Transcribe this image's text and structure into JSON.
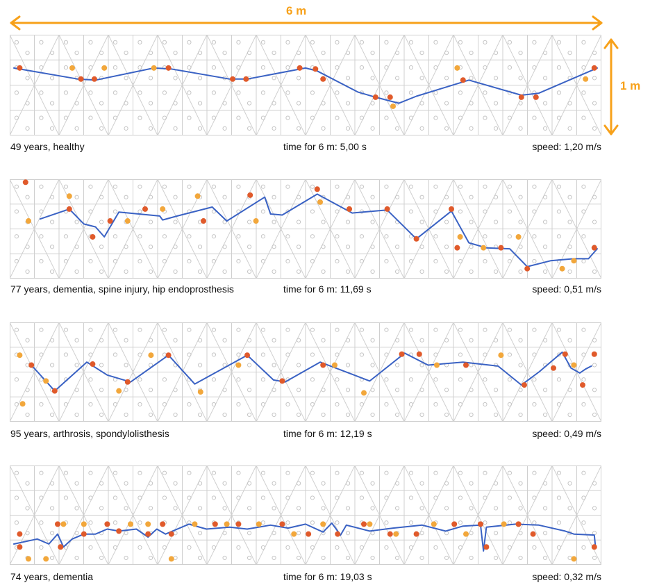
{
  "dimensions": {
    "width_label": "6 m",
    "height_label": "1 m"
  },
  "colors": {
    "dimension": "#f7a11a",
    "path": "#3a62c4",
    "right_foot": "#e05a2b",
    "left_foot": "#f2a73b",
    "grid": "#cfcfcf",
    "sensor": "#c6c6c6"
  },
  "panels": [
    {
      "description": "49 years, healthy",
      "time": "time for 6 m: 5,00 s",
      "speed": "speed: 1,20 m/s",
      "path": [
        [
          0.0,
          0.33
        ],
        [
          0.11,
          0.44
        ],
        [
          0.14,
          0.45
        ],
        [
          0.24,
          0.33
        ],
        [
          0.27,
          0.34
        ],
        [
          0.37,
          0.44
        ],
        [
          0.4,
          0.44
        ],
        [
          0.5,
          0.33
        ],
        [
          0.52,
          0.36
        ],
        [
          0.59,
          0.57
        ],
        [
          0.62,
          0.62
        ],
        [
          0.66,
          0.68
        ],
        [
          0.69,
          0.61
        ],
        [
          0.78,
          0.45
        ],
        [
          0.87,
          0.6
        ],
        [
          0.9,
          0.58
        ],
        [
          1.0,
          0.33
        ]
      ],
      "right_steps": [
        [
          0.01,
          0.33
        ],
        [
          0.115,
          0.44
        ],
        [
          0.138,
          0.44
        ],
        [
          0.265,
          0.33
        ],
        [
          0.375,
          0.44
        ],
        [
          0.398,
          0.44
        ],
        [
          0.49,
          0.33
        ],
        [
          0.517,
          0.34
        ],
        [
          0.53,
          0.44
        ],
        [
          0.62,
          0.62
        ],
        [
          0.645,
          0.62
        ],
        [
          0.77,
          0.45
        ],
        [
          0.87,
          0.62
        ],
        [
          0.895,
          0.62
        ],
        [
          0.995,
          0.33
        ]
      ],
      "left_steps": [
        [
          0.1,
          0.33
        ],
        [
          0.155,
          0.33
        ],
        [
          0.24,
          0.33
        ],
        [
          0.65,
          0.71
        ],
        [
          0.76,
          0.33
        ],
        [
          0.98,
          0.44
        ]
      ]
    },
    {
      "description": "77 years, dementia, spine injury, hip endoprosthesis",
      "time": "time for 6 m: 11,69 s",
      "speed": "speed: 0,51 m/s",
      "path": [
        [
          0.045,
          0.4
        ],
        [
          0.095,
          0.3
        ],
        [
          0.12,
          0.45
        ],
        [
          0.14,
          0.48
        ],
        [
          0.155,
          0.58
        ],
        [
          0.18,
          0.33
        ],
        [
          0.25,
          0.37
        ],
        [
          0.255,
          0.41
        ],
        [
          0.28,
          0.37
        ],
        [
          0.34,
          0.28
        ],
        [
          0.365,
          0.42
        ],
        [
          0.43,
          0.18
        ],
        [
          0.44,
          0.35
        ],
        [
          0.46,
          0.36
        ],
        [
          0.52,
          0.15
        ],
        [
          0.58,
          0.34
        ],
        [
          0.64,
          0.31
        ],
        [
          0.69,
          0.6
        ],
        [
          0.75,
          0.32
        ],
        [
          0.78,
          0.64
        ],
        [
          0.81,
          0.69
        ],
        [
          0.85,
          0.7
        ],
        [
          0.88,
          0.88
        ],
        [
          0.92,
          0.82
        ],
        [
          0.96,
          0.8
        ],
        [
          0.985,
          0.8
        ],
        [
          1.0,
          0.7
        ]
      ],
      "right_steps": [
        [
          0.02,
          0.03
        ],
        [
          0.095,
          0.3
        ],
        [
          0.135,
          0.58
        ],
        [
          0.165,
          0.42
        ],
        [
          0.225,
          0.3
        ],
        [
          0.325,
          0.42
        ],
        [
          0.405,
          0.16
        ],
        [
          0.52,
          0.1
        ],
        [
          0.575,
          0.3
        ],
        [
          0.64,
          0.3
        ],
        [
          0.69,
          0.6
        ],
        [
          0.75,
          0.3
        ],
        [
          0.76,
          0.69
        ],
        [
          0.835,
          0.69
        ],
        [
          0.88,
          0.9
        ],
        [
          0.995,
          0.69
        ]
      ],
      "left_steps": [
        [
          0.025,
          0.42
        ],
        [
          0.095,
          0.17
        ],
        [
          0.195,
          0.42
        ],
        [
          0.255,
          0.3
        ],
        [
          0.315,
          0.17
        ],
        [
          0.415,
          0.42
        ],
        [
          0.525,
          0.23
        ],
        [
          0.575,
          0.3
        ],
        [
          0.765,
          0.58
        ],
        [
          0.805,
          0.69
        ],
        [
          0.865,
          0.58
        ],
        [
          0.94,
          0.9
        ],
        [
          0.96,
          0.82
        ]
      ]
    },
    {
      "description": "95 years, arthrosis, spondylolisthesis",
      "time": "time for 6 m: 12,19 s",
      "speed": "speed: 0,49 m/s",
      "path": [
        [
          0.03,
          0.43
        ],
        [
          0.07,
          0.69
        ],
        [
          0.125,
          0.4
        ],
        [
          0.16,
          0.53
        ],
        [
          0.2,
          0.6
        ],
        [
          0.265,
          0.33
        ],
        [
          0.31,
          0.62
        ],
        [
          0.4,
          0.33
        ],
        [
          0.445,
          0.58
        ],
        [
          0.465,
          0.6
        ],
        [
          0.525,
          0.4
        ],
        [
          0.61,
          0.59
        ],
        [
          0.67,
          0.31
        ],
        [
          0.71,
          0.43
        ],
        [
          0.77,
          0.4
        ],
        [
          0.83,
          0.44
        ],
        [
          0.87,
          0.63
        ],
        [
          0.9,
          0.5
        ],
        [
          0.94,
          0.3
        ],
        [
          0.955,
          0.46
        ],
        [
          0.97,
          0.51
        ],
        [
          0.98,
          0.47
        ],
        [
          0.99,
          0.44
        ]
      ],
      "right_steps": [
        [
          0.03,
          0.43
        ],
        [
          0.07,
          0.69
        ],
        [
          0.135,
          0.42
        ],
        [
          0.195,
          0.6
        ],
        [
          0.265,
          0.33
        ],
        [
          0.4,
          0.33
        ],
        [
          0.46,
          0.59
        ],
        [
          0.53,
          0.43
        ],
        [
          0.665,
          0.32
        ],
        [
          0.695,
          0.32
        ],
        [
          0.775,
          0.43
        ],
        [
          0.875,
          0.63
        ],
        [
          0.925,
          0.46
        ],
        [
          0.945,
          0.32
        ],
        [
          0.975,
          0.63
        ],
        [
          0.995,
          0.32
        ]
      ],
      "left_steps": [
        [
          0.01,
          0.33
        ],
        [
          0.055,
          0.59
        ],
        [
          0.015,
          0.82
        ],
        [
          0.18,
          0.69
        ],
        [
          0.235,
          0.33
        ],
        [
          0.32,
          0.7
        ],
        [
          0.385,
          0.43
        ],
        [
          0.55,
          0.43
        ],
        [
          0.6,
          0.71
        ],
        [
          0.725,
          0.43
        ],
        [
          0.835,
          0.33
        ],
        [
          0.96,
          0.43
        ]
      ]
    },
    {
      "description": "74 years, dementia",
      "time": "time for 6 m: 19,03 s",
      "speed": "speed: 0,32 m/s",
      "path": [
        [
          0.0,
          0.79
        ],
        [
          0.04,
          0.74
        ],
        [
          0.06,
          0.79
        ],
        [
          0.075,
          0.69
        ],
        [
          0.085,
          0.82
        ],
        [
          0.1,
          0.74
        ],
        [
          0.12,
          0.69
        ],
        [
          0.14,
          0.69
        ],
        [
          0.16,
          0.64
        ],
        [
          0.18,
          0.66
        ],
        [
          0.21,
          0.64
        ],
        [
          0.23,
          0.72
        ],
        [
          0.245,
          0.64
        ],
        [
          0.26,
          0.69
        ],
        [
          0.3,
          0.59
        ],
        [
          0.33,
          0.64
        ],
        [
          0.37,
          0.62
        ],
        [
          0.4,
          0.64
        ],
        [
          0.44,
          0.6
        ],
        [
          0.47,
          0.63
        ],
        [
          0.5,
          0.59
        ],
        [
          0.53,
          0.67
        ],
        [
          0.545,
          0.58
        ],
        [
          0.56,
          0.7
        ],
        [
          0.57,
          0.6
        ],
        [
          0.61,
          0.66
        ],
        [
          0.65,
          0.63
        ],
        [
          0.7,
          0.6
        ],
        [
          0.74,
          0.66
        ],
        [
          0.77,
          0.61
        ],
        [
          0.8,
          0.6
        ],
        [
          0.805,
          0.86
        ],
        [
          0.81,
          0.62
        ],
        [
          0.86,
          0.59
        ],
        [
          0.9,
          0.6
        ],
        [
          0.945,
          0.66
        ],
        [
          0.96,
          0.69
        ],
        [
          0.995,
          0.7
        ],
        [
          0.997,
          0.82
        ]
      ],
      "right_steps": [
        [
          0.01,
          0.69
        ],
        [
          0.01,
          0.82
        ],
        [
          0.075,
          0.59
        ],
        [
          0.08,
          0.82
        ],
        [
          0.12,
          0.69
        ],
        [
          0.16,
          0.59
        ],
        [
          0.18,
          0.66
        ],
        [
          0.23,
          0.69
        ],
        [
          0.255,
          0.59
        ],
        [
          0.27,
          0.69
        ],
        [
          0.345,
          0.59
        ],
        [
          0.385,
          0.59
        ],
        [
          0.46,
          0.59
        ],
        [
          0.505,
          0.69
        ],
        [
          0.555,
          0.69
        ],
        [
          0.6,
          0.59
        ],
        [
          0.645,
          0.69
        ],
        [
          0.69,
          0.69
        ],
        [
          0.755,
          0.59
        ],
        [
          0.8,
          0.59
        ],
        [
          0.81,
          0.82
        ],
        [
          0.865,
          0.59
        ],
        [
          0.89,
          0.69
        ],
        [
          0.995,
          0.82
        ]
      ],
      "left_steps": [
        [
          0.025,
          0.94
        ],
        [
          0.055,
          0.94
        ],
        [
          0.085,
          0.59
        ],
        [
          0.12,
          0.59
        ],
        [
          0.2,
          0.59
        ],
        [
          0.23,
          0.59
        ],
        [
          0.27,
          0.94
        ],
        [
          0.31,
          0.59
        ],
        [
          0.365,
          0.59
        ],
        [
          0.42,
          0.59
        ],
        [
          0.48,
          0.69
        ],
        [
          0.53,
          0.59
        ],
        [
          0.61,
          0.59
        ],
        [
          0.655,
          0.69
        ],
        [
          0.72,
          0.59
        ],
        [
          0.775,
          0.69
        ],
        [
          0.84,
          0.59
        ],
        [
          0.865,
          0.59
        ],
        [
          0.96,
          0.94
        ]
      ]
    }
  ]
}
